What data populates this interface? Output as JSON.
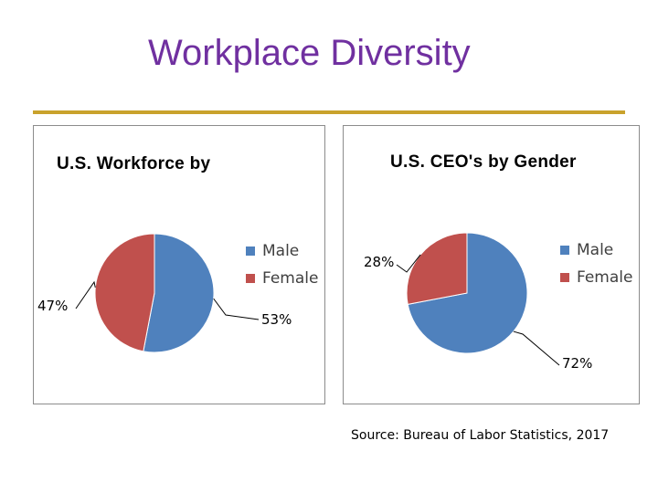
{
  "slide": {
    "title": "Workplace Diversity",
    "source": "Source: Bureau of Labor Statistics, 2017"
  },
  "colors": {
    "title": "#7030a0",
    "divider": "#c9a22c",
    "male": "#4f81bd",
    "female": "#c0504d"
  },
  "chart_data": [
    {
      "type": "pie",
      "title": "U.S. Workforce by",
      "categories": [
        "Male",
        "Female"
      ],
      "values": [
        53,
        47
      ],
      "data_labels": [
        "53%",
        "47%"
      ],
      "legend": "right",
      "legend_entries": [
        "Male",
        "Female"
      ]
    },
    {
      "type": "pie",
      "title": "U.S. CEO's  by Gender",
      "categories": [
        "Male",
        "Female"
      ],
      "values": [
        72,
        28
      ],
      "data_labels": [
        "72%",
        "28%"
      ],
      "legend": "right",
      "legend_entries": [
        "Male",
        "Female"
      ]
    }
  ]
}
